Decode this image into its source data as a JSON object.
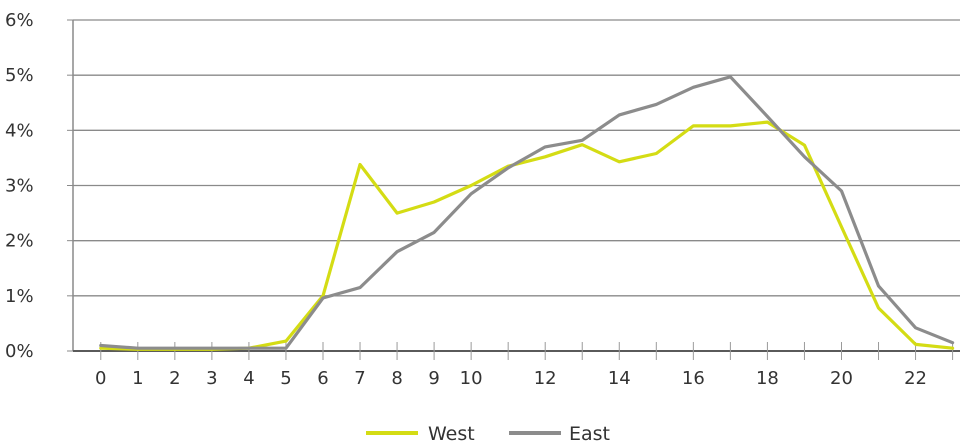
{
  "chart_data": {
    "type": "line",
    "title": "",
    "xlabel": "",
    "ylabel": "",
    "x": [
      0,
      1,
      2,
      3,
      4,
      5,
      6,
      7,
      8,
      9,
      10,
      11,
      12,
      13,
      14,
      15,
      16,
      17,
      18,
      19,
      20,
      21,
      22,
      23
    ],
    "x_tick_labels": [
      "0",
      "1",
      "2",
      "3",
      "4",
      "5",
      "6",
      "7",
      "8",
      "9",
      "10",
      "12",
      "14",
      "16",
      "18",
      "20",
      "22"
    ],
    "x_tick_label_values": [
      0,
      1,
      2,
      3,
      4,
      5,
      6,
      7,
      8,
      9,
      10,
      12,
      14,
      16,
      18,
      20,
      22
    ],
    "xlim": [
      -0.75,
      23.2
    ],
    "y_tick_labels": [
      "0%",
      "1%",
      "2%",
      "3%",
      "4%",
      "5%",
      "6%"
    ],
    "y_tick_values": [
      0,
      1,
      2,
      3,
      4,
      5,
      6
    ],
    "ylim": [
      0,
      6
    ],
    "grid": true,
    "legend_position": "bottom-center",
    "series": [
      {
        "name": "West",
        "color": "#d4dc14",
        "values": [
          0.05,
          0.03,
          0.03,
          0.03,
          0.05,
          0.18,
          1.0,
          3.38,
          2.5,
          2.7,
          3.0,
          3.35,
          3.52,
          3.74,
          3.43,
          3.58,
          4.08,
          4.08,
          4.15,
          3.73,
          2.25,
          0.78,
          0.12,
          0.05
        ]
      },
      {
        "name": "East",
        "color": "#8c8c8c",
        "values": [
          0.1,
          0.05,
          0.05,
          0.05,
          0.05,
          0.05,
          0.96,
          1.15,
          1.8,
          2.15,
          2.85,
          3.32,
          3.7,
          3.82,
          4.28,
          4.47,
          4.78,
          4.97,
          4.25,
          3.52,
          2.9,
          1.18,
          0.42,
          0.15
        ]
      }
    ]
  }
}
